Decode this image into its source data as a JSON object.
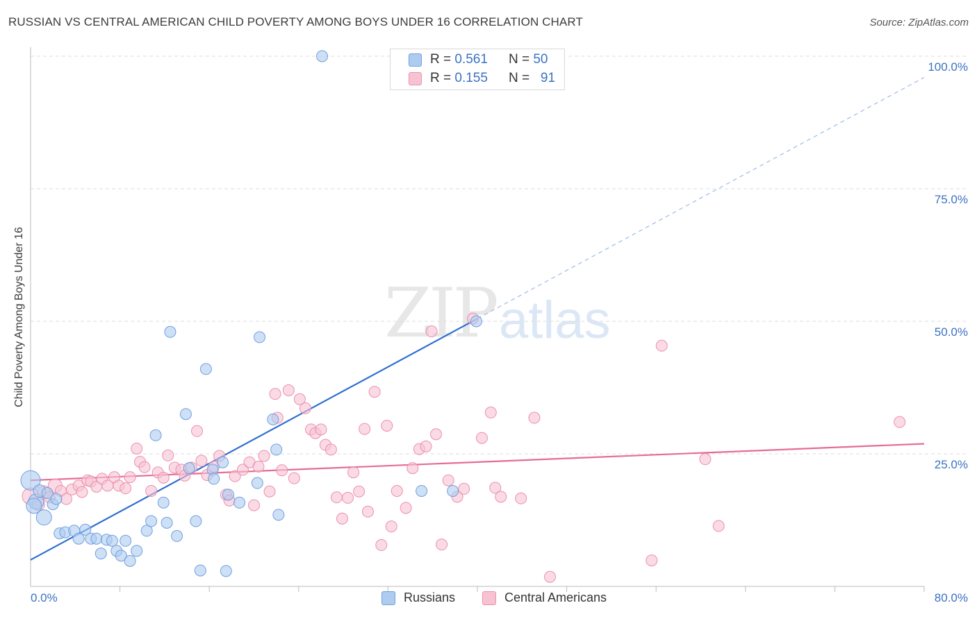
{
  "title": "RUSSIAN VS CENTRAL AMERICAN CHILD POVERTY AMONG BOYS UNDER 16 CORRELATION CHART",
  "source": "Source: ZipAtlas.com",
  "watermark": {
    "zip": "ZIP",
    "atlas": "atlas"
  },
  "colors": {
    "blue_fill": "#aecbf0",
    "blue_stroke": "#6f9fe0",
    "blue_line": "#2f6fd0",
    "pink_fill": "#f7c3d3",
    "pink_stroke": "#ec8fab",
    "pink_line": "#e66b95",
    "axis_label": "#3b72c2",
    "grid": "#dddddd"
  },
  "legend_top": {
    "rows": [
      {
        "r_label": "R = ",
        "r_value": "0.561",
        "n_label": "N = ",
        "n_value": "50"
      },
      {
        "r_label": "R = ",
        "r_value": "0.155",
        "n_label": "N = ",
        "n_value": "91"
      }
    ]
  },
  "chart_data": {
    "type": "scatter",
    "title": "RUSSIAN VS CENTRAL AMERICAN CHILD POVERTY AMONG BOYS UNDER 16 CORRELATION CHART",
    "xlabel": "",
    "ylabel": "Child Poverty Among Boys Under 16",
    "xlim": [
      0,
      80
    ],
    "ylim": [
      0,
      100
    ],
    "x_tick_labels": [
      "0.0%",
      "80.0%"
    ],
    "y_tick_values": [
      25,
      50,
      75,
      100
    ],
    "y_tick_labels": [
      "25.0%",
      "50.0%",
      "75.0%",
      "100.0%"
    ],
    "grid": true,
    "legend_position": "bottom",
    "series": [
      {
        "name": "Russians",
        "color": "#6f9fe0",
        "r": 0.561,
        "n": 50,
        "trend": {
          "x0": 0,
          "y0": 5.0,
          "x1": 40,
          "y1": 50.5,
          "extend_to_x": 80,
          "extend_style": "dashed"
        },
        "points": [
          [
            0.0,
            20.0,
            14
          ],
          [
            0.5,
            16.0,
            11
          ],
          [
            1.2,
            13.0,
            11
          ],
          [
            2.0,
            15.5,
            8
          ],
          [
            2.6,
            10.0,
            8
          ],
          [
            3.1,
            10.2,
            8
          ],
          [
            3.9,
            10.5,
            8
          ],
          [
            4.3,
            9.0,
            8
          ],
          [
            4.9,
            10.7,
            8
          ],
          [
            5.4,
            9.0,
            8
          ],
          [
            5.9,
            9.0,
            8
          ],
          [
            6.3,
            6.2,
            8
          ],
          [
            6.8,
            8.8,
            8
          ],
          [
            7.3,
            8.6,
            8
          ],
          [
            7.7,
            6.7,
            8
          ],
          [
            8.1,
            5.8,
            8
          ],
          [
            8.5,
            8.6,
            8
          ],
          [
            8.9,
            4.8,
            8
          ],
          [
            9.5,
            6.7,
            8
          ],
          [
            10.4,
            10.5,
            8
          ],
          [
            10.8,
            12.3,
            8
          ],
          [
            11.2,
            28.5,
            8
          ],
          [
            11.9,
            15.8,
            8
          ],
          [
            12.2,
            12.0,
            8
          ],
          [
            12.5,
            48.0,
            8
          ],
          [
            13.1,
            9.5,
            8
          ],
          [
            13.9,
            32.5,
            8
          ],
          [
            14.2,
            22.3,
            8
          ],
          [
            14.8,
            12.3,
            8
          ],
          [
            15.2,
            3.0,
            8
          ],
          [
            15.7,
            41.0,
            8
          ],
          [
            16.3,
            22.0,
            8
          ],
          [
            16.4,
            20.3,
            8
          ],
          [
            17.2,
            23.4,
            8
          ],
          [
            17.5,
            2.9,
            8
          ],
          [
            17.7,
            17.3,
            8
          ],
          [
            18.7,
            15.8,
            8
          ],
          [
            20.3,
            19.5,
            8
          ],
          [
            20.5,
            47.0,
            8
          ],
          [
            21.7,
            31.5,
            8
          ],
          [
            22.0,
            25.8,
            8
          ],
          [
            22.2,
            13.5,
            8
          ],
          [
            26.1,
            100.0,
            8
          ],
          [
            35.0,
            18.0,
            8
          ],
          [
            37.8,
            18.0,
            8
          ],
          [
            39.9,
            50.0,
            8
          ],
          [
            0.3,
            15.2,
            11
          ],
          [
            0.8,
            18.0,
            9
          ],
          [
            1.5,
            17.6,
            8
          ],
          [
            2.3,
            16.5,
            8
          ]
        ]
      },
      {
        "name": "Central Americans",
        "color": "#ec8fab",
        "r": 0.155,
        "n": 91,
        "trend": {
          "x0": 0,
          "y0": 20.0,
          "x1": 80,
          "y1": 26.9
        },
        "points": [
          [
            0.0,
            17.0,
            12
          ],
          [
            0.7,
            15.5,
            9
          ],
          [
            1.2,
            17.8,
            9
          ],
          [
            1.7,
            16.8,
            8
          ],
          [
            2.2,
            19.0,
            10
          ],
          [
            2.7,
            18.0,
            8
          ],
          [
            3.2,
            16.5,
            8
          ],
          [
            3.7,
            18.3,
            8
          ],
          [
            4.3,
            19.0,
            8
          ],
          [
            4.6,
            17.8,
            8
          ],
          [
            5.1,
            20.0,
            8
          ],
          [
            5.4,
            19.8,
            8
          ],
          [
            5.9,
            18.8,
            8
          ],
          [
            6.4,
            20.3,
            8
          ],
          [
            6.9,
            19.0,
            8
          ],
          [
            7.5,
            20.6,
            8
          ],
          [
            7.9,
            19.0,
            8
          ],
          [
            8.5,
            18.5,
            8
          ],
          [
            8.9,
            20.6,
            8
          ],
          [
            9.5,
            26.0,
            8
          ],
          [
            9.8,
            23.5,
            8
          ],
          [
            10.2,
            22.5,
            8
          ],
          [
            10.8,
            18.0,
            8
          ],
          [
            11.4,
            21.5,
            8
          ],
          [
            11.9,
            20.5,
            8
          ],
          [
            12.3,
            24.7,
            8
          ],
          [
            12.9,
            22.4,
            8
          ],
          [
            13.5,
            22.0,
            8
          ],
          [
            13.8,
            20.9,
            8
          ],
          [
            14.4,
            22.4,
            8
          ],
          [
            14.9,
            29.3,
            8
          ],
          [
            15.3,
            23.7,
            8
          ],
          [
            15.8,
            21.0,
            8
          ],
          [
            16.4,
            22.6,
            8
          ],
          [
            16.9,
            24.6,
            8
          ],
          [
            17.5,
            17.3,
            8
          ],
          [
            17.8,
            16.2,
            8
          ],
          [
            18.3,
            20.8,
            8
          ],
          [
            19.0,
            22.0,
            8
          ],
          [
            19.6,
            23.4,
            8
          ],
          [
            20.0,
            15.3,
            8
          ],
          [
            20.4,
            22.6,
            8
          ],
          [
            20.9,
            24.6,
            8
          ],
          [
            21.4,
            17.9,
            8
          ],
          [
            21.9,
            36.3,
            8
          ],
          [
            22.1,
            31.8,
            8
          ],
          [
            22.5,
            21.9,
            8
          ],
          [
            23.1,
            37.0,
            8
          ],
          [
            23.6,
            20.4,
            8
          ],
          [
            24.1,
            35.3,
            8
          ],
          [
            24.6,
            33.6,
            8
          ],
          [
            25.1,
            29.6,
            8
          ],
          [
            25.5,
            28.9,
            8
          ],
          [
            26.0,
            29.6,
            8
          ],
          [
            26.4,
            26.7,
            8
          ],
          [
            26.9,
            25.8,
            8
          ],
          [
            27.4,
            16.8,
            8
          ],
          [
            27.9,
            12.8,
            8
          ],
          [
            28.4,
            16.7,
            8
          ],
          [
            28.9,
            21.5,
            8
          ],
          [
            29.4,
            17.9,
            8
          ],
          [
            29.9,
            29.7,
            8
          ],
          [
            30.2,
            14.1,
            8
          ],
          [
            30.8,
            36.7,
            8
          ],
          [
            31.4,
            7.8,
            8
          ],
          [
            31.9,
            30.3,
            8
          ],
          [
            32.3,
            11.3,
            8
          ],
          [
            32.8,
            18.0,
            8
          ],
          [
            33.6,
            14.8,
            8
          ],
          [
            34.2,
            22.3,
            8
          ],
          [
            34.8,
            25.9,
            8
          ],
          [
            35.4,
            26.4,
            8
          ],
          [
            35.9,
            48.1,
            8
          ],
          [
            36.3,
            28.7,
            8
          ],
          [
            36.8,
            7.9,
            8
          ],
          [
            37.4,
            20.0,
            8
          ],
          [
            38.2,
            16.9,
            8
          ],
          [
            38.8,
            18.4,
            8
          ],
          [
            39.6,
            50.5,
            8
          ],
          [
            40.4,
            28.0,
            8
          ],
          [
            41.2,
            32.8,
            8
          ],
          [
            41.6,
            18.6,
            8
          ],
          [
            42.1,
            16.9,
            8
          ],
          [
            43.9,
            16.6,
            8
          ],
          [
            45.1,
            31.8,
            8
          ],
          [
            46.5,
            1.8,
            8
          ],
          [
            55.6,
            4.9,
            8
          ],
          [
            56.5,
            45.4,
            8
          ],
          [
            60.4,
            24.0,
            8
          ],
          [
            61.6,
            11.4,
            8
          ],
          [
            77.8,
            31.0,
            8
          ]
        ]
      }
    ]
  },
  "legend_bottom": {
    "items": [
      "Russians",
      "Central Americans"
    ]
  }
}
